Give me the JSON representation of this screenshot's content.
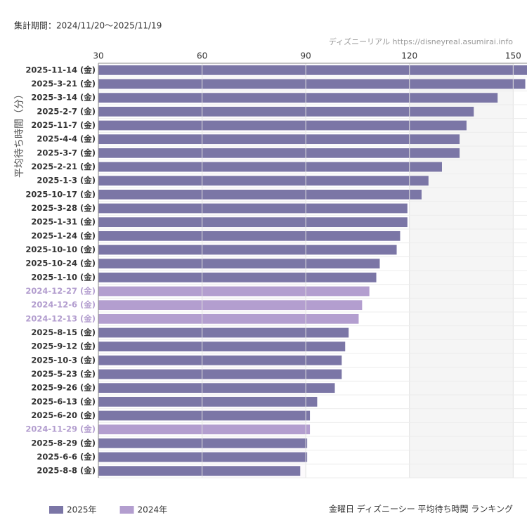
{
  "chart_data": {
    "type": "bar",
    "orientation": "horizontal",
    "period": "集計期間：2024/11/20〜2025/11/19",
    "source": "ディズニーリアル https://disneyreal.asumirai.info",
    "ylabel": "平均待ち時間（分）",
    "caption": "金曜日 ディズニーシー 平均待ち時間 ランキング",
    "categories": [
      "2025-11-14 (金)",
      "2025-3-21 (金)",
      "2025-3-14 (金)",
      "2025-2-7 (金)",
      "2025-11-7 (金)",
      "2025-4-4 (金)",
      "2025-3-7 (金)",
      "2025-2-21 (金)",
      "2025-1-3 (金)",
      "2025-10-17 (金)",
      "2025-3-28 (金)",
      "2025-1-31 (金)",
      "2025-1-24 (金)",
      "2025-10-10 (金)",
      "2025-10-24 (金)",
      "2025-1-10 (金)",
      "2024-12-27 (金)",
      "2024-12-6 (金)",
      "2024-12-13 (金)",
      "2025-8-15 (金)",
      "2025-9-12 (金)",
      "2025-10-3 (金)",
      "2025-5-23 (金)",
      "2025-9-26 (金)",
      "2025-6-13 (金)",
      "2025-6-20 (金)",
      "2024-11-29 (金)",
      "2025-8-29 (金)",
      "2025-6-6 (金)",
      "2025-8-8 (金)"
    ],
    "series": [
      {
        "name": "2025年",
        "color": "#7b76a6",
        "values": [
          156,
          153.5,
          145.5,
          138.6,
          136.5,
          134.5,
          134.5,
          129.4,
          125.5,
          123.5,
          119.4,
          119.4,
          117.3,
          116.3,
          111.4,
          110.4,
          null,
          null,
          null,
          102.4,
          101.4,
          100.4,
          100.4,
          98.4,
          93.3,
          91.2,
          null,
          90.4,
          90.4,
          88.4
        ]
      },
      {
        "name": "2024年",
        "color": "#b39ecf",
        "values": [
          null,
          null,
          null,
          null,
          null,
          null,
          null,
          null,
          null,
          null,
          null,
          null,
          null,
          null,
          null,
          null,
          108.4,
          106.3,
          105.3,
          null,
          null,
          null,
          null,
          null,
          null,
          null,
          91.2,
          null,
          null,
          null
        ]
      }
    ],
    "xlim": [
      30,
      154
    ],
    "xticks": [
      30,
      60,
      90,
      120,
      150
    ],
    "grid": true
  }
}
